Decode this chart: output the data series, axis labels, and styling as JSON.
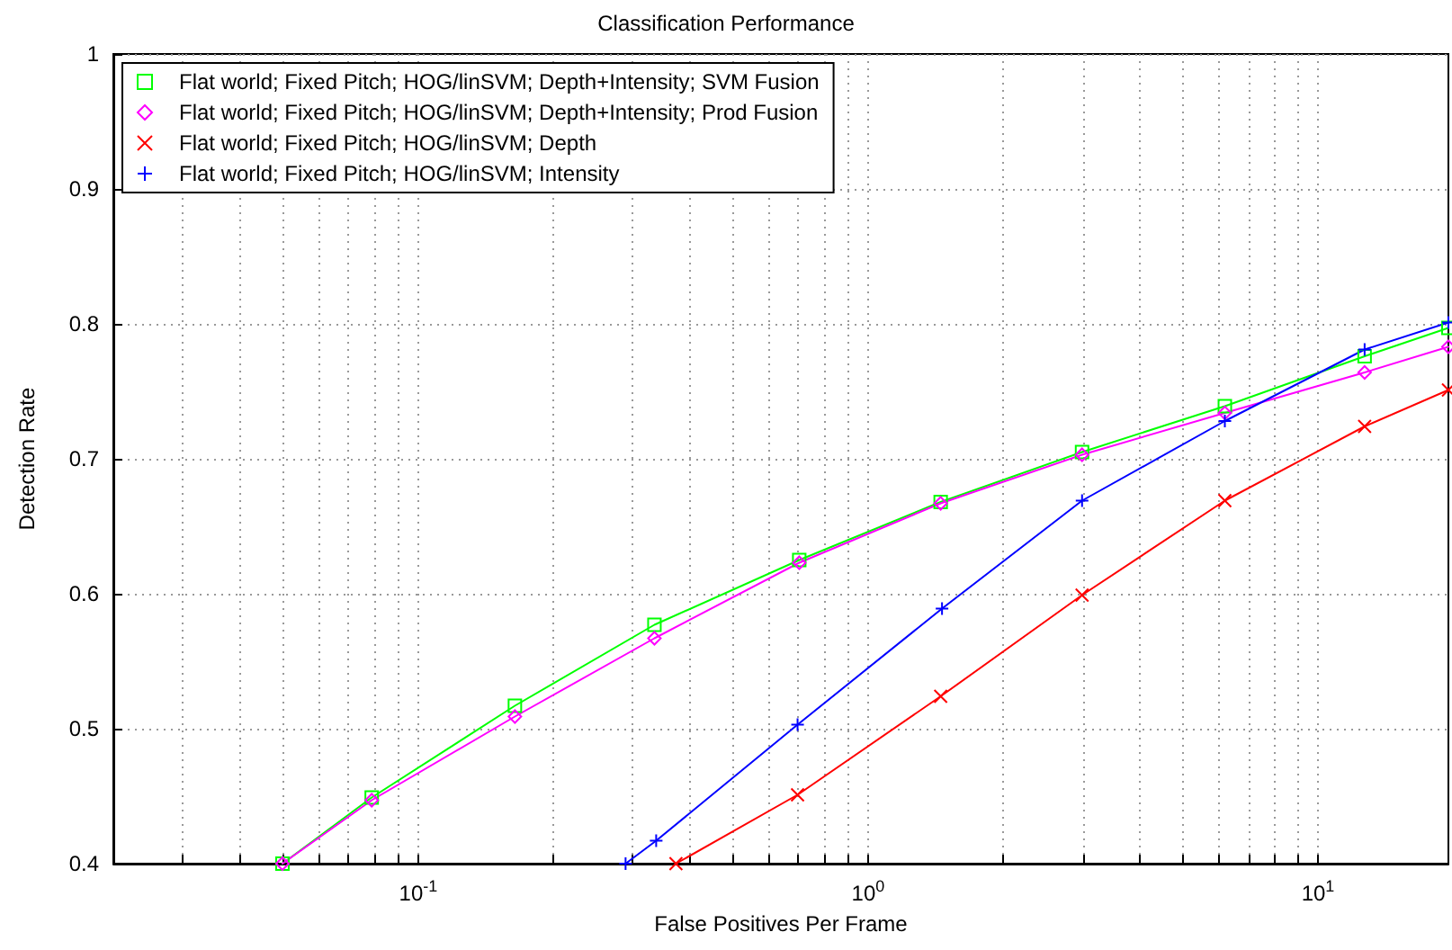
{
  "chart_data": {
    "type": "line",
    "title": "Classification Performance",
    "xlabel": "False Positives Per Frame",
    "ylabel": "Detection Rate",
    "log": "x",
    "grid": true,
    "legend": "top left",
    "xlim": [
      0.021,
      19.5
    ],
    "ylim": [
      0.4,
      1
    ],
    "xticks": [
      {
        "value": 0.03,
        "label": null
      },
      {
        "value": 0.04,
        "label": null
      },
      {
        "value": 0.05,
        "label": null
      },
      {
        "value": 0.06,
        "label": null
      },
      {
        "value": 0.07,
        "label": null
      },
      {
        "value": 0.08,
        "label": null
      },
      {
        "value": 0.09,
        "label": null
      },
      {
        "value": 0.1,
        "label": "10$^{-1}$"
      },
      {
        "value": 0.2,
        "label": null
      },
      {
        "value": 0.3,
        "label": null
      },
      {
        "value": 0.4,
        "label": null
      },
      {
        "value": 0.5,
        "label": null
      },
      {
        "value": 0.6,
        "label": null
      },
      {
        "value": 0.7,
        "label": null
      },
      {
        "value": 0.8,
        "label": null
      },
      {
        "value": 0.9,
        "label": null
      },
      {
        "value": 1,
        "label": "10$^{0}$"
      },
      {
        "value": 2,
        "label": null
      },
      {
        "value": 3,
        "label": null
      },
      {
        "value": 4,
        "label": null
      },
      {
        "value": 5,
        "label": null
      },
      {
        "value": 6,
        "label": null
      },
      {
        "value": 7,
        "label": null
      },
      {
        "value": 8,
        "label": null
      },
      {
        "value": 9,
        "label": null
      },
      {
        "value": 10,
        "label": "10$^{1}$"
      }
    ],
    "yticks": [
      0.4,
      0.5,
      0.6,
      0.7,
      0.8,
      0.9,
      1
    ],
    "series": [
      {
        "name": "Flat world; Fixed Pitch; HOG/linSVM; Depth+Intensity; SVM Fusion",
        "color": "#00ff00",
        "marker": "square",
        "x": [
          0.0499,
          0.0788,
          0.164,
          0.335,
          0.703,
          1.45,
          2.99,
          6.21,
          12.7,
          19.5
        ],
        "values": [
          0.4,
          0.449,
          0.517,
          0.577,
          0.625,
          0.668,
          0.705,
          0.739,
          0.776,
          0.797
        ]
      },
      {
        "name": "Flat world; Fixed Pitch; HOG/linSVM; Depth+Intensity; Prod Fusion",
        "color": "#ff00ff",
        "marker": "diamond",
        "x": [
          0.0499,
          0.0788,
          0.164,
          0.335,
          0.703,
          1.45,
          2.99,
          6.21,
          12.7,
          19.5
        ],
        "values": [
          0.4,
          0.447,
          0.509,
          0.567,
          0.623,
          0.667,
          0.703,
          0.734,
          0.764,
          0.783
        ]
      },
      {
        "name": "Flat world; Fixed Pitch; HOG/linSVM; Depth",
        "color": "#ff0000",
        "marker": "cross",
        "x": [
          0.374,
          0.697,
          1.45,
          2.99,
          6.21,
          12.7,
          19.5
        ],
        "values": [
          0.4,
          0.451,
          0.524,
          0.599,
          0.669,
          0.724,
          0.751
        ]
      },
      {
        "name": "Flat world; Fixed Pitch; HOG/linSVM; Intensity",
        "color": "#0000ff",
        "marker": "plus",
        "x": [
          0.289,
          0.338,
          0.697,
          1.46,
          2.99,
          6.21,
          12.7,
          19.5
        ],
        "values": [
          0.4,
          0.417,
          0.503,
          0.589,
          0.669,
          0.728,
          0.781,
          0.801
        ]
      }
    ]
  }
}
